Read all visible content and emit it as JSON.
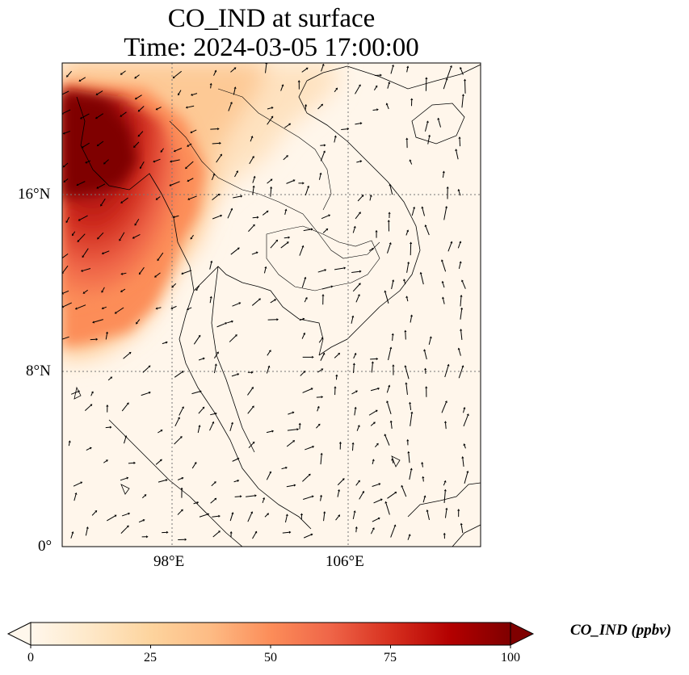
{
  "title": {
    "line1": "CO_IND at surface",
    "line2": "Time: 2024-03-05 17:00:00"
  },
  "map": {
    "lat_ticks": [
      "16°N",
      "8°N",
      "0°"
    ],
    "lon_ticks": [
      "98°E",
      "106°E"
    ],
    "gridline_style": "dotted",
    "overlay": "wind vectors"
  },
  "colorbar": {
    "label": "CO_IND (ppbv)",
    "colormap": "OrRd",
    "min": 0,
    "max": 100,
    "ticks": [
      "0",
      "25",
      "50",
      "75",
      "100"
    ],
    "extend": "both",
    "colors": [
      "#fff7ec",
      "#fee8c8",
      "#fdd49e",
      "#fdbb84",
      "#fc8d59",
      "#ef6548",
      "#d7301f",
      "#b30000",
      "#7f0000"
    ]
  }
}
